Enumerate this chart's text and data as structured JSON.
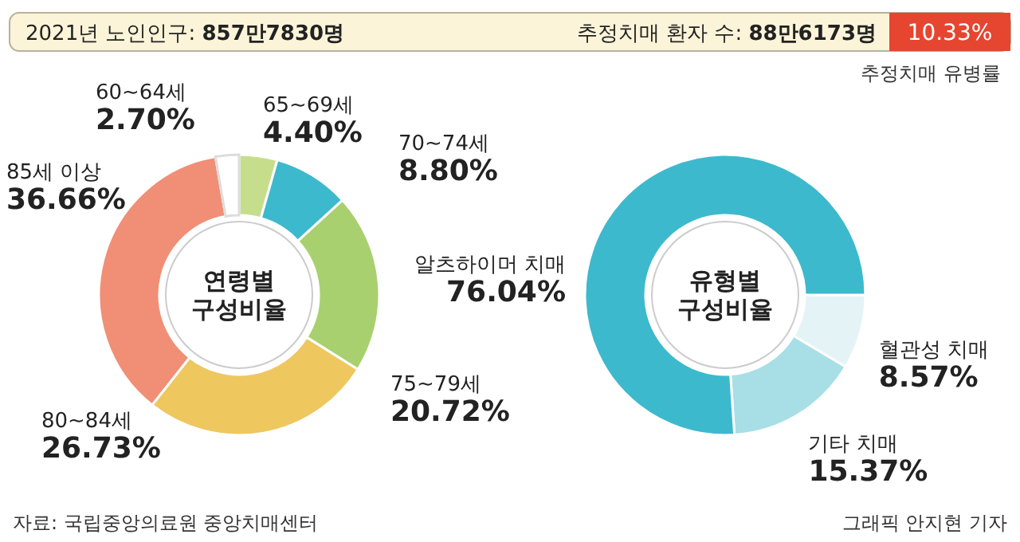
{
  "chart_data": [
    {
      "type": "other",
      "annotations": [
        "2021년 노인인구: **857만7830명**",
        "추정치매 환자 수: **88만6173명**",
        "10.33%",
        "추정치매 유병률",
        "자료: 국립중앙의료원 중앙치매센터",
        "그래픽 안지현 기자"
      ]
    },
    {
      "type": "donut",
      "title": "연령별 구성비율",
      "categories": [
        "65~69세",
        "70~74세",
        "75~79세",
        "80~84세",
        "85세 이상",
        "60~64세"
      ],
      "values": [
        4.4,
        8.8,
        20.72,
        26.73,
        36.66,
        2.7
      ],
      "value_labels": [
        "4.40%",
        "8.80%",
        "20.72%",
        "26.73%",
        "36.66%",
        "2.70%"
      ],
      "colors": [
        "#c6de8c",
        "#3db9cd",
        "#a9d06f",
        "#eec75f",
        "#f08f75",
        "#ffffff"
      ],
      "legend": false
    },
    {
      "type": "donut",
      "title": "유형별 구성비율",
      "categories": [
        "혈관성 치매",
        "기타 치매",
        "알츠하이머 치매"
      ],
      "values": [
        8.57,
        15.37,
        76.04
      ],
      "value_labels": [
        "8.57%",
        "15.37%",
        "76.04%"
      ],
      "colors": [
        "#e4f4f6",
        "#a8dfe6",
        "#3db9cd"
      ],
      "legend": false
    }
  ]
}
